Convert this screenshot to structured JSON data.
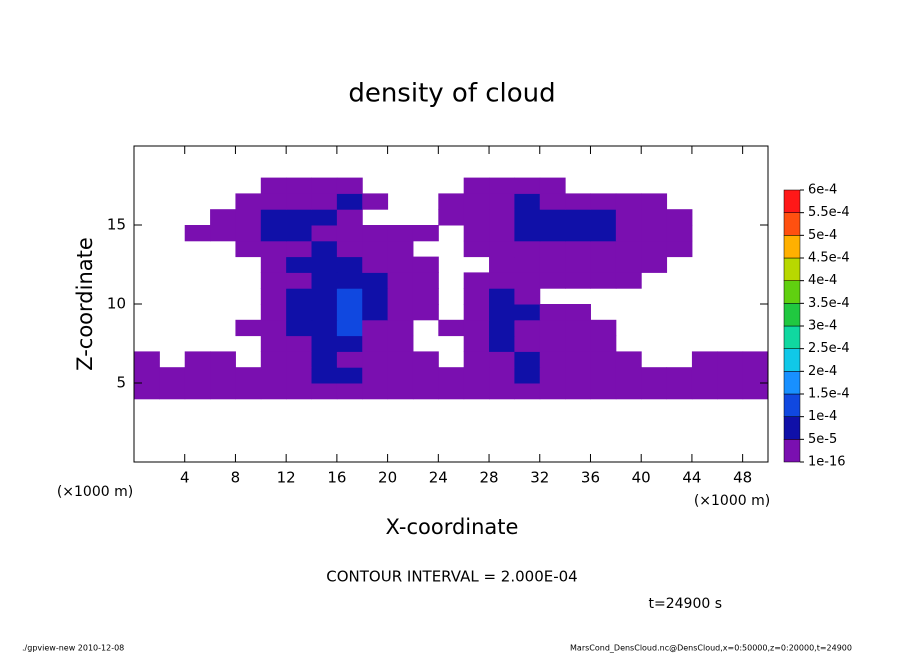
{
  "chart_data": {
    "type": "contour",
    "title": "density of cloud",
    "xlabel": "X-coordinate",
    "ylabel": "Z-coordinate",
    "xunit": "(×1000 m)",
    "yunit": "(×1000 m)",
    "annotation": "CONTOUR INTERVAL = 2.000E-04",
    "time": "t=24900 s",
    "footer_left": "./gpview-new  2010-12-08",
    "footer_right": "MarsCond_DensCloud.nc@DensCloud,x=0:50000,z=0:20000,t=24900",
    "xlim": [
      0,
      50
    ],
    "ylim": [
      0,
      20
    ],
    "xticks": [
      4,
      8,
      12,
      16,
      20,
      24,
      28,
      32,
      36,
      40,
      44,
      48
    ],
    "yticks": [
      5,
      10,
      15
    ],
    "x": [
      1,
      3,
      5,
      7,
      9,
      11,
      13,
      15,
      17,
      19,
      21,
      23,
      25,
      27,
      29,
      31,
      33,
      35,
      37,
      39,
      41,
      43,
      45,
      47,
      49
    ],
    "z": [
      4.5,
      5.5,
      6.5,
      7.5,
      8.5,
      9.5,
      10.5,
      11.5,
      12.5,
      13.5,
      14.5,
      15.5,
      16.5,
      17.5
    ],
    "values": [
      [
        1e-05,
        1e-05,
        1e-05,
        1e-05,
        1e-05,
        1e-05,
        1e-05,
        1e-05,
        1e-05,
        1e-05,
        1e-05,
        1e-05,
        1e-05,
        1e-05,
        1e-05,
        1e-05,
        1e-05,
        1e-05,
        1e-05,
        1e-05,
        1e-05,
        1e-05,
        1e-05,
        1e-05,
        1e-05
      ],
      [
        1e-05,
        1e-05,
        1e-05,
        1e-05,
        1e-05,
        1e-05,
        1e-05,
        7e-05,
        7e-05,
        1e-05,
        1e-05,
        1e-05,
        1e-05,
        1e-05,
        1e-05,
        7e-05,
        1e-05,
        1e-05,
        1e-05,
        1e-05,
        1e-05,
        1e-05,
        1e-05,
        1e-05,
        1e-05
      ],
      [
        1e-05,
        null,
        1e-05,
        1e-05,
        null,
        1e-05,
        1e-05,
        7e-05,
        1e-05,
        1e-05,
        1e-05,
        1e-05,
        null,
        1e-05,
        1e-05,
        7e-05,
        1e-05,
        1e-05,
        1e-05,
        1e-05,
        null,
        null,
        1e-05,
        1e-05,
        1e-05
      ],
      [
        null,
        null,
        null,
        null,
        null,
        1e-05,
        1e-05,
        7e-05,
        7e-05,
        1e-05,
        1e-05,
        null,
        null,
        1e-05,
        7e-05,
        1e-05,
        1e-05,
        1e-05,
        1e-05,
        null,
        null,
        null,
        null,
        null,
        null
      ],
      [
        null,
        null,
        null,
        null,
        1e-05,
        1e-05,
        7e-05,
        7e-05,
        0.00012,
        1e-05,
        1e-05,
        null,
        1e-05,
        1e-05,
        7e-05,
        1e-05,
        1e-05,
        1e-05,
        1e-05,
        null,
        null,
        null,
        null,
        null,
        null
      ],
      [
        null,
        null,
        null,
        null,
        null,
        1e-05,
        7e-05,
        7e-05,
        0.00012,
        7e-05,
        1e-05,
        1e-05,
        null,
        1e-05,
        7e-05,
        7e-05,
        1e-05,
        1e-05,
        null,
        null,
        null,
        null,
        null,
        null,
        null
      ],
      [
        null,
        null,
        null,
        null,
        null,
        1e-05,
        7e-05,
        7e-05,
        0.00012,
        7e-05,
        1e-05,
        1e-05,
        null,
        1e-05,
        7e-05,
        1e-05,
        null,
        null,
        null,
        null,
        null,
        null,
        null,
        null,
        null
      ],
      [
        null,
        null,
        null,
        null,
        null,
        1e-05,
        1e-05,
        7e-05,
        7e-05,
        7e-05,
        1e-05,
        1e-05,
        null,
        1e-05,
        1e-05,
        1e-05,
        1e-05,
        1e-05,
        1e-05,
        1e-05,
        null,
        null,
        null,
        null,
        null
      ],
      [
        null,
        null,
        null,
        null,
        null,
        1e-05,
        7e-05,
        7e-05,
        7e-05,
        1e-05,
        1e-05,
        1e-05,
        null,
        null,
        1e-05,
        1e-05,
        1e-05,
        1e-05,
        1e-05,
        1e-05,
        1e-05,
        null,
        null,
        null,
        null
      ],
      [
        null,
        null,
        null,
        null,
        1e-05,
        1e-05,
        1e-05,
        7e-05,
        1e-05,
        1e-05,
        1e-05,
        null,
        null,
        1e-05,
        1e-05,
        1e-05,
        1e-05,
        1e-05,
        1e-05,
        1e-05,
        1e-05,
        1e-05,
        null,
        null,
        null
      ],
      [
        null,
        null,
        1e-05,
        1e-05,
        1e-05,
        7e-05,
        7e-05,
        1e-05,
        1e-05,
        1e-05,
        1e-05,
        1e-05,
        null,
        1e-05,
        1e-05,
        7e-05,
        7e-05,
        7e-05,
        7e-05,
        1e-05,
        1e-05,
        1e-05,
        null,
        null,
        null
      ],
      [
        null,
        null,
        null,
        1e-05,
        1e-05,
        7e-05,
        7e-05,
        7e-05,
        1e-05,
        null,
        null,
        null,
        1e-05,
        1e-05,
        1e-05,
        7e-05,
        7e-05,
        7e-05,
        7e-05,
        1e-05,
        1e-05,
        1e-05,
        null,
        null,
        null
      ],
      [
        null,
        null,
        null,
        null,
        1e-05,
        1e-05,
        1e-05,
        1e-05,
        7e-05,
        1e-05,
        null,
        null,
        1e-05,
        1e-05,
        1e-05,
        7e-05,
        1e-05,
        1e-05,
        1e-05,
        1e-05,
        1e-05,
        null,
        null,
        null,
        null
      ],
      [
        null,
        null,
        null,
        null,
        null,
        1e-05,
        1e-05,
        1e-05,
        1e-05,
        null,
        null,
        null,
        null,
        1e-05,
        1e-05,
        1e-05,
        1e-05,
        null,
        null,
        null,
        null,
        null,
        null,
        null,
        null
      ]
    ],
    "colorbar": {
      "ticks": [
        {
          "value": 1e-16,
          "label": "1e-16"
        },
        {
          "value": 5e-05,
          "label": "5e-5"
        },
        {
          "value": 0.0001,
          "label": "1e-4"
        },
        {
          "value": 0.00015,
          "label": "1.5e-4"
        },
        {
          "value": 0.0002,
          "label": "2e-4"
        },
        {
          "value": 0.00025,
          "label": "2.5e-4"
        },
        {
          "value": 0.0003,
          "label": "3e-4"
        },
        {
          "value": 0.00035,
          "label": "3.5e-4"
        },
        {
          "value": 0.0004,
          "label": "4e-4"
        },
        {
          "value": 0.00045,
          "label": "4.5e-4"
        },
        {
          "value": 0.0005,
          "label": "5e-4"
        },
        {
          "value": 0.00055,
          "label": "5.5e-4"
        },
        {
          "value": 0.0006,
          "label": "6e-4"
        }
      ],
      "colors": [
        "#7a0fb0",
        "#1010a8",
        "#1048e0",
        "#1890ff",
        "#10c8e8",
        "#10d8a0",
        "#20c840",
        "#60d010",
        "#b8d800",
        "#ffb000",
        "#ff5010",
        "#ff1818"
      ]
    }
  }
}
